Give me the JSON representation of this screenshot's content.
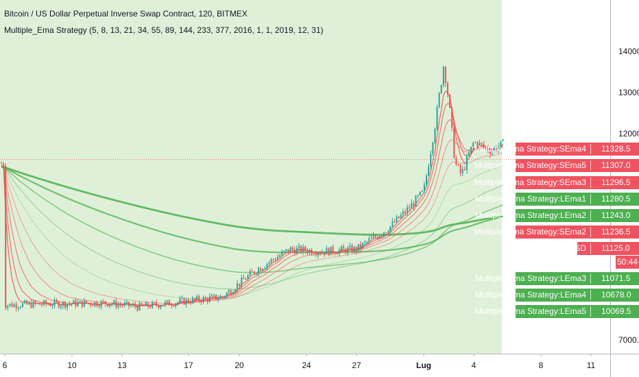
{
  "header": {
    "title": "Bitcoin / US Dollar Perpetual Inverse Swap Contract, 120, BITMEX",
    "study": "Multiple_Ema Strategy (5, 8, 13, 21, 34, 55, 89, 144, 233, 377, 2016, 1, 1, 2019, 12, 31)"
  },
  "colors": {
    "bull": "#26a69a",
    "bear": "#ef5350",
    "ema_short": "#f04848",
    "ema_long": "#4caf50",
    "bg_highlight": "#dff0d8",
    "tag_red": "#f0525f",
    "tag_green": "#4caf50"
  },
  "chart_data": {
    "type": "line",
    "ylim": [
      6800,
      14800
    ],
    "y_ticks": [
      "7000.0",
      "14000.0",
      "13000.0",
      "12000.0"
    ],
    "x_ticks": [
      "6",
      "10",
      "13",
      "17",
      "20",
      "24",
      "27",
      "Lug",
      "4",
      "8",
      "11"
    ],
    "close_path": [
      {
        "x": 0,
        "y": 7850
      },
      {
        "x": 6,
        "y": 7900
      },
      {
        "x": 8,
        "y": 7800
      },
      {
        "x": 11,
        "y": 7950
      },
      {
        "x": 13,
        "y": 8050
      },
      {
        "x": 15,
        "y": 8700
      },
      {
        "x": 17,
        "y": 9200
      },
      {
        "x": 19,
        "y": 9150
      },
      {
        "x": 21,
        "y": 9200
      },
      {
        "x": 23,
        "y": 9750
      },
      {
        "x": 24,
        "y": 10150
      },
      {
        "x": 25,
        "y": 10600
      },
      {
        "x": 26,
        "y": 12400
      },
      {
        "x": 26.6,
        "y": 13700
      },
      {
        "x": 27,
        "y": 12800
      },
      {
        "x": 27.5,
        "y": 11300
      },
      {
        "x": 28,
        "y": 11000
      },
      {
        "x": 29,
        "y": 11800
      },
      {
        "x": 30,
        "y": 11600
      },
      {
        "x": 31,
        "y": 11800
      },
      {
        "x": 31.8,
        "y": 11400
      },
      {
        "x": 32.5,
        "y": 11000
      },
      {
        "x": 33,
        "y": 10500
      },
      {
        "x": 33.4,
        "y": 10300
      },
      {
        "x": 34,
        "y": 10900
      },
      {
        "x": 35,
        "y": 11300
      },
      {
        "x": 35.6,
        "y": 11900
      },
      {
        "x": 36.2,
        "y": 11700
      },
      {
        "x": 37,
        "y": 11100
      },
      {
        "x": 37.4,
        "y": 11280
      }
    ],
    "series": [
      {
        "name": "Multiple_Ema Strategy:SEma4",
        "role": "short"
      },
      {
        "name": "Multiple_Ema Strategy:SEma5",
        "role": "short"
      },
      {
        "name": "Multiple_Ema Strategy:SEma3",
        "role": "short"
      },
      {
        "name": "Multiple_Ema Strategy:LEma1",
        "role": "long"
      },
      {
        "name": "Multiple_Ema Strategy:LEma2",
        "role": "long"
      },
      {
        "name": "Multiple_Ema Strategy:SEma2",
        "role": "short"
      },
      {
        "name": "Multiple_Ema Strategy:LEma3",
        "role": "long"
      },
      {
        "name": "Multiple_Ema Strategy:LEma4",
        "role": "long"
      },
      {
        "name": "Multiple_Ema Strategy:LEma5",
        "role": "long"
      }
    ],
    "last_price": 11125.0,
    "symbol": "XBTUSD"
  },
  "tags": [
    {
      "label": "Multiple_Ema Strategy:SEma4",
      "value": "11328.5",
      "color": "red"
    },
    {
      "label": "Multiple_Ema Strategy:SEma5",
      "value": "11307.0",
      "color": "red"
    },
    {
      "label": "Multiple_Ema Strategy:SEma3",
      "value": "11296.5",
      "color": "red"
    },
    {
      "label": "Multiple_Ema Strategy:LEma1",
      "value": "11280.5",
      "color": "green"
    },
    {
      "label": "Multiple_Ema Strategy:LEma2",
      "value": "11243.0",
      "color": "green"
    },
    {
      "label": "Multiple_Ema Strategy:SEma2",
      "value": "11236.5",
      "color": "red"
    },
    {
      "label": "XBTUSD",
      "value": "11125.0",
      "color": "red"
    },
    {
      "label": "Multiple_Ema Strategy:LEma3",
      "value": "11071.5",
      "color": "green"
    },
    {
      "label": "Multiple_Ema Strategy:LEma4",
      "value": "10678.0",
      "color": "green"
    },
    {
      "label": "Multiple_Ema Strategy:LEma5",
      "value": "10069.5",
      "color": "green"
    }
  ],
  "timer": "50:44"
}
